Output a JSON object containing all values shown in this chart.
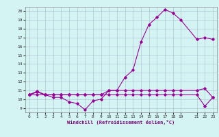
{
  "xlabel": "Windchill (Refroidissement éolien,°C)",
  "line1_x": [
    0,
    1,
    2,
    3,
    4,
    5,
    6,
    7,
    8,
    9,
    10,
    11,
    12,
    13,
    14,
    15,
    16,
    17,
    18,
    19,
    21,
    22,
    23
  ],
  "line1_y": [
    10.5,
    10.8,
    10.5,
    10.2,
    10.2,
    9.7,
    9.5,
    8.8,
    9.8,
    10.0,
    11.0,
    11.0,
    12.5,
    13.3,
    16.5,
    18.5,
    19.3,
    20.2,
    19.8,
    19.0,
    16.8,
    17.0,
    16.8
  ],
  "line2_x": [
    0,
    1,
    2,
    3,
    4,
    5,
    6,
    7,
    8,
    9,
    10,
    11,
    12,
    13,
    14,
    15,
    16,
    17,
    18,
    19,
    21,
    22,
    23
  ],
  "line2_y": [
    10.5,
    10.9,
    10.5,
    10.5,
    10.5,
    10.5,
    10.5,
    10.5,
    10.5,
    10.5,
    11.0,
    11.0,
    11.0,
    11.0,
    11.0,
    11.0,
    11.0,
    11.0,
    11.0,
    11.0,
    11.0,
    11.2,
    10.2
  ],
  "line3_x": [
    0,
    1,
    2,
    3,
    4,
    5,
    6,
    7,
    8,
    9,
    10,
    11,
    12,
    13,
    14,
    15,
    16,
    17,
    18,
    19,
    21,
    22,
    23
  ],
  "line3_y": [
    10.5,
    10.5,
    10.5,
    10.5,
    10.5,
    10.5,
    10.5,
    10.5,
    10.5,
    10.5,
    10.5,
    10.5,
    10.5,
    10.5,
    10.5,
    10.5,
    10.5,
    10.5,
    10.5,
    10.5,
    10.5,
    9.2,
    10.2
  ],
  "color": "#990099",
  "bg_color": "#d4f4f4",
  "grid_color": "#aabbcc",
  "xlim": [
    -0.5,
    23.5
  ],
  "ylim": [
    8.5,
    20.5
  ],
  "yticks": [
    9,
    10,
    11,
    12,
    13,
    14,
    15,
    16,
    17,
    18,
    19,
    20
  ],
  "xticks": [
    0,
    1,
    2,
    3,
    4,
    5,
    6,
    7,
    8,
    9,
    10,
    11,
    12,
    13,
    14,
    15,
    16,
    17,
    18,
    19,
    21,
    22,
    23
  ]
}
